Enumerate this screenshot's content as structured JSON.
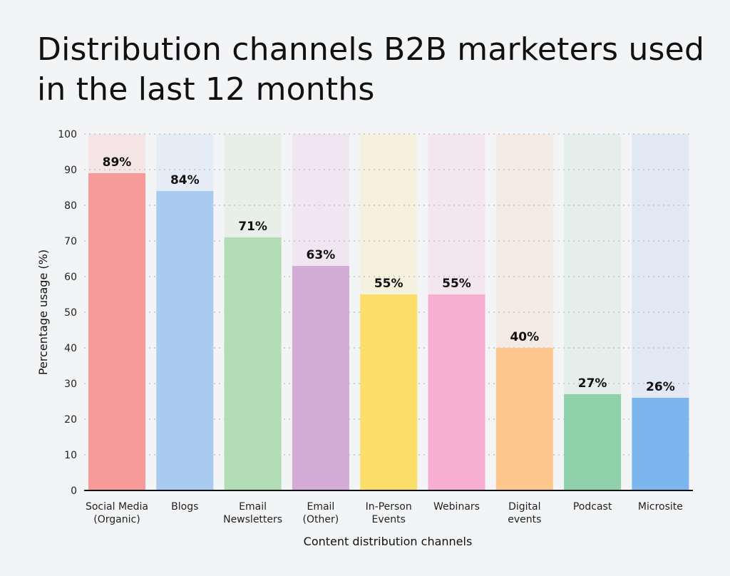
{
  "chart_data": {
    "type": "bar",
    "title": "Distribution channels B2B marketers used in the last 12 months",
    "xlabel": "Content distribution channels",
    "ylabel": "Percentage usage (%)",
    "ylim": [
      0,
      100
    ],
    "yticks": [
      0,
      10,
      20,
      30,
      40,
      50,
      60,
      70,
      80,
      90,
      100
    ],
    "grid": true,
    "categories": [
      [
        "Social Media",
        "(Organic)"
      ],
      [
        "Blogs"
      ],
      [
        "Email",
        "Newsletters"
      ],
      [
        "Email",
        "(Other)"
      ],
      [
        "In-Person",
        "Events"
      ],
      [
        "Webinars"
      ],
      [
        "Digital",
        "events"
      ],
      [
        "Podcast"
      ],
      [
        "Microsite"
      ]
    ],
    "values": [
      89,
      84,
      71,
      63,
      55,
      55,
      40,
      27,
      26
    ],
    "value_labels": [
      "89%",
      "84%",
      "71%",
      "63%",
      "55%",
      "55%",
      "40%",
      "27%",
      "26%"
    ],
    "bar_colors": [
      "#f79a9a",
      "#a9cbf0",
      "#b2ddb5",
      "#d3acd6",
      "#fbde6a",
      "#f8aed0",
      "#fdc68c",
      "#8ed1aa",
      "#7db5ef"
    ],
    "background_colors": [
      "#f4e4e6",
      "#e6ecf5",
      "#e8efe9",
      "#efe6ef",
      "#f4f1df",
      "#f4e6ee",
      "#f4ebe5",
      "#e5eeeb",
      "#e2e8f4"
    ]
  }
}
